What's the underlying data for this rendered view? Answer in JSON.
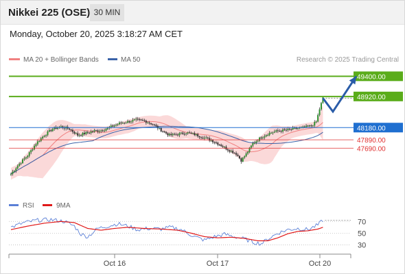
{
  "header": {
    "title": "Nikkei 225 (OSE)",
    "timeframe": "30 MIN"
  },
  "datetime": "Monday, October 20, 2025 3:18:27 AM CET",
  "legend": {
    "ma20_bb": "MA 20 + Bollinger Bands",
    "ma50": "MA 50",
    "credit": "Research © 2025 Trading Central",
    "rsi": "RSI",
    "rsi_ma": "9MA"
  },
  "colors": {
    "ma20": "#f08080",
    "bollinger_fill": "#fbd9d9",
    "ma50": "#3a62a8",
    "resistance": "#5aac1a",
    "pivot": "#1f6fd0",
    "support": "#e03030",
    "arrow": "#2a5ca8",
    "rsi": "#5a7fd6",
    "rsi_ma": "#e01818",
    "candle_up": "#2f8f2f",
    "candle_down": "#333333"
  },
  "chart_data": [
    {
      "type": "candlestick",
      "x_ticks": [
        "Oct 16",
        "Oct 17",
        "Oct 20"
      ],
      "ylim": [
        46800,
        49650
      ],
      "levels": [
        {
          "kind": "resistance",
          "value": 49400,
          "label": "49400.00"
        },
        {
          "kind": "resistance",
          "value": 48920,
          "label": "48920.00"
        },
        {
          "kind": "pivot",
          "value": 48180,
          "label": "48180.00"
        },
        {
          "kind": "support",
          "value": 47890,
          "label": "47890.00"
        },
        {
          "kind": "support",
          "value": 47690,
          "label": "47690.00"
        }
      ],
      "last_price": 48880,
      "close_anchors": [
        [
          0,
          47080
        ],
        [
          5,
          47320
        ],
        [
          10,
          47520
        ],
        [
          15,
          47800
        ],
        [
          20,
          48000
        ],
        [
          25,
          48150
        ],
        [
          30,
          48200
        ],
        [
          35,
          48150
        ],
        [
          40,
          48000
        ],
        [
          45,
          48050
        ],
        [
          50,
          48100
        ],
        [
          55,
          48120
        ],
        [
          60,
          48200
        ],
        [
          65,
          48280
        ],
        [
          70,
          48320
        ],
        [
          75,
          48360
        ],
        [
          80,
          48340
        ],
        [
          85,
          48260
        ],
        [
          90,
          48120
        ],
        [
          95,
          48000
        ],
        [
          100,
          48020
        ],
        [
          105,
          48060
        ],
        [
          110,
          48020
        ],
        [
          115,
          47950
        ],
        [
          120,
          47880
        ],
        [
          125,
          47780
        ],
        [
          130,
          47660
        ],
        [
          135,
          47560
        ],
        [
          138,
          47400
        ],
        [
          141,
          47550
        ],
        [
          145,
          47800
        ],
        [
          150,
          47950
        ],
        [
          155,
          48050
        ],
        [
          160,
          48100
        ],
        [
          165,
          48120
        ],
        [
          170,
          48150
        ],
        [
          175,
          48180
        ],
        [
          180,
          48220
        ],
        [
          183,
          48320
        ],
        [
          185,
          48620
        ],
        [
          187,
          48880
        ]
      ],
      "projection": [
        [
          187,
          48880
        ],
        [
          193,
          48560
        ],
        [
          207,
          49400
        ]
      ]
    },
    {
      "type": "line",
      "title": "RSI",
      "ylim": [
        20,
        82
      ],
      "y_ticks": [
        70,
        50,
        30
      ],
      "series": [
        {
          "name": "RSI",
          "points": [
            [
              0,
              60
            ],
            [
              8,
              68
            ],
            [
              16,
              72
            ],
            [
              24,
              73
            ],
            [
              32,
              70
            ],
            [
              38,
              62
            ],
            [
              42,
              48
            ],
            [
              46,
              44
            ],
            [
              52,
              58
            ],
            [
              58,
              62
            ],
            [
              64,
              66
            ],
            [
              70,
              62
            ],
            [
              76,
              56
            ],
            [
              82,
              58
            ],
            [
              90,
              57
            ],
            [
              96,
              60
            ],
            [
              102,
              56
            ],
            [
              110,
              44
            ],
            [
              116,
              38
            ],
            [
              122,
              44
            ],
            [
              128,
              48
            ],
            [
              134,
              44
            ],
            [
              140,
              40
            ],
            [
              146,
              34
            ],
            [
              150,
              32
            ],
            [
              154,
              40
            ],
            [
              160,
              50
            ],
            [
              166,
              56
            ],
            [
              172,
              58
            ],
            [
              178,
              56
            ],
            [
              184,
              64
            ],
            [
              187,
              72
            ]
          ]
        },
        {
          "name": "9MA",
          "points": [
            [
              0,
              56
            ],
            [
              10,
              62
            ],
            [
              20,
              67
            ],
            [
              30,
              70
            ],
            [
              38,
              68
            ],
            [
              46,
              58
            ],
            [
              54,
              55
            ],
            [
              62,
              58
            ],
            [
              70,
              60
            ],
            [
              80,
              58
            ],
            [
              90,
              57
            ],
            [
              100,
              55
            ],
            [
              108,
              50
            ],
            [
              116,
              44
            ],
            [
              124,
              42
            ],
            [
              132,
              43
            ],
            [
              140,
              41
            ],
            [
              148,
              37
            ],
            [
              154,
              37
            ],
            [
              160,
              42
            ],
            [
              166,
              49
            ],
            [
              172,
              53
            ],
            [
              178,
              54
            ],
            [
              184,
              57
            ],
            [
              187,
              60
            ]
          ]
        }
      ]
    }
  ]
}
